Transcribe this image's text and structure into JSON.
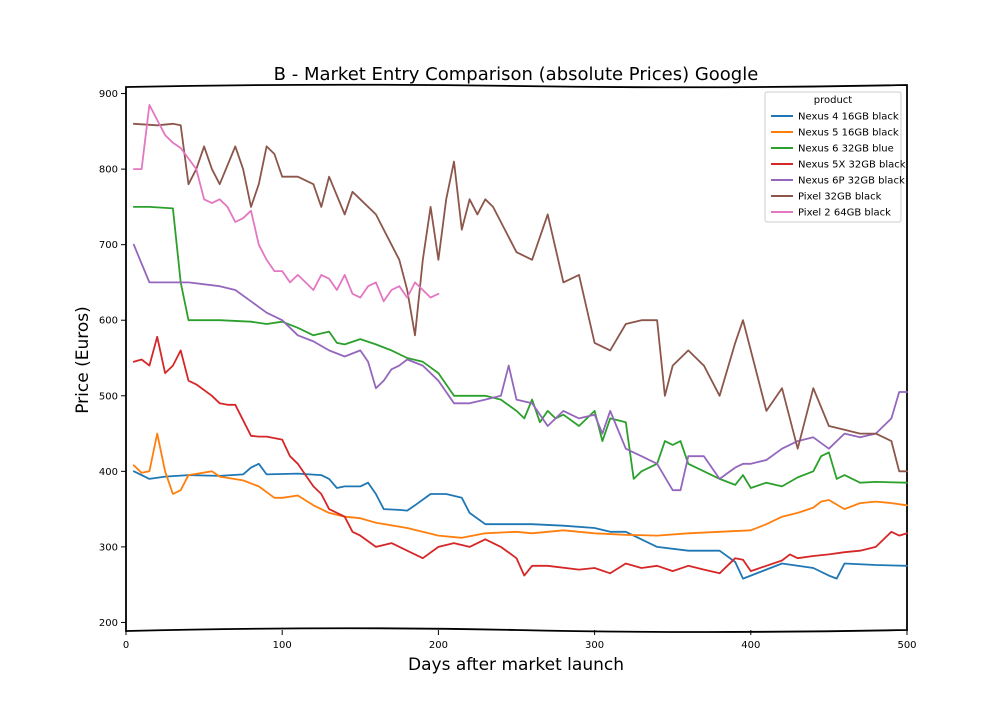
{
  "chart_data": {
    "type": "line",
    "title": "B - Market Entry Comparison (absolute Prices) Google",
    "xlabel": "Days after market launch",
    "ylabel": "Price (Euros)",
    "xlim": [
      0,
      500
    ],
    "ylim": [
      190,
      910
    ],
    "xticks": [
      0,
      100,
      200,
      300,
      400,
      500
    ],
    "yticks": [
      200,
      300,
      400,
      500,
      600,
      700,
      800,
      900
    ],
    "grid": false,
    "legend": {
      "title": "product",
      "position": "top-right"
    },
    "series": [
      {
        "name": "Nexus 4 16GB black",
        "color": "#1f77b4",
        "x": [
          5,
          10,
          15,
          25,
          40,
          60,
          75,
          80,
          85,
          90,
          110,
          125,
          130,
          135,
          140,
          150,
          155,
          160,
          165,
          175,
          180,
          185,
          195,
          205,
          215,
          220,
          230,
          240,
          250,
          260,
          280,
          300,
          310,
          320,
          340,
          360,
          380,
          390,
          395,
          400,
          420,
          440,
          450,
          455,
          460,
          480,
          500
        ],
        "y": [
          400,
          395,
          390,
          393,
          395,
          394,
          396,
          405,
          410,
          396,
          397,
          395,
          390,
          378,
          380,
          380,
          385,
          370,
          350,
          349,
          348,
          355,
          370,
          370,
          365,
          345,
          330,
          330,
          330,
          330,
          328,
          325,
          320,
          320,
          300,
          295,
          295,
          280,
          258,
          262,
          278,
          272,
          262,
          258,
          278,
          276,
          275
        ]
      },
      {
        "name": "Nexus 5 16GB black",
        "color": "#ff7f0e",
        "x": [
          5,
          10,
          15,
          20,
          25,
          30,
          35,
          40,
          55,
          60,
          75,
          85,
          95,
          100,
          110,
          120,
          130,
          140,
          150,
          160,
          180,
          200,
          215,
          230,
          250,
          260,
          270,
          280,
          300,
          320,
          340,
          360,
          380,
          400,
          410,
          420,
          430,
          440,
          445,
          450,
          460,
          470,
          480,
          490,
          500
        ],
        "y": [
          408,
          398,
          400,
          450,
          400,
          370,
          375,
          395,
          400,
          393,
          388,
          380,
          365,
          365,
          368,
          355,
          345,
          340,
          338,
          332,
          325,
          315,
          312,
          318,
          320,
          318,
          320,
          322,
          318,
          316,
          315,
          318,
          320,
          322,
          330,
          340,
          345,
          352,
          360,
          362,
          350,
          358,
          360,
          358,
          355
        ]
      },
      {
        "name": "Nexus 6 32GB blue",
        "color": "#2ca02c",
        "x": [
          5,
          15,
          30,
          35,
          40,
          60,
          80,
          90,
          100,
          110,
          120,
          130,
          135,
          140,
          150,
          160,
          170,
          180,
          190,
          200,
          210,
          220,
          230,
          240,
          250,
          255,
          260,
          265,
          270,
          275,
          280,
          290,
          300,
          305,
          310,
          320,
          325,
          330,
          340,
          345,
          350,
          355,
          360,
          370,
          380,
          390,
          395,
          400,
          410,
          420,
          430,
          440,
          445,
          450,
          455,
          460,
          470,
          480,
          500
        ],
        "y": [
          750,
          750,
          748,
          650,
          600,
          600,
          598,
          595,
          598,
          590,
          580,
          585,
          570,
          568,
          575,
          568,
          560,
          550,
          545,
          530,
          500,
          500,
          500,
          495,
          480,
          470,
          495,
          465,
          480,
          470,
          475,
          460,
          480,
          440,
          470,
          465,
          390,
          400,
          410,
          440,
          435,
          440,
          410,
          400,
          390,
          382,
          395,
          378,
          385,
          380,
          392,
          400,
          420,
          425,
          390,
          395,
          385,
          386,
          385
        ]
      },
      {
        "name": "Nexus 5X 32GB black",
        "color": "#d62728",
        "x": [
          5,
          10,
          15,
          20,
          25,
          30,
          35,
          40,
          45,
          55,
          60,
          65,
          70,
          80,
          85,
          90,
          100,
          105,
          110,
          115,
          120,
          125,
          130,
          140,
          145,
          150,
          160,
          170,
          180,
          190,
          200,
          210,
          220,
          230,
          240,
          250,
          255,
          260,
          270,
          290,
          300,
          310,
          320,
          330,
          340,
          350,
          360,
          370,
          380,
          390,
          395,
          400,
          410,
          420,
          425,
          430,
          440,
          450,
          460,
          470,
          480,
          490,
          495,
          500
        ],
        "y": [
          545,
          548,
          540,
          578,
          530,
          540,
          560,
          520,
          515,
          500,
          490,
          488,
          488,
          447,
          446,
          446,
          442,
          420,
          410,
          395,
          380,
          370,
          350,
          340,
          320,
          315,
          300,
          305,
          295,
          285,
          300,
          305,
          300,
          310,
          300,
          285,
          262,
          275,
          275,
          270,
          272,
          265,
          278,
          272,
          275,
          268,
          275,
          270,
          265,
          285,
          283,
          268,
          275,
          282,
          290,
          285,
          288,
          290,
          293,
          295,
          300,
          320,
          315,
          318
        ]
      },
      {
        "name": "Nexus 6P 32GB black",
        "color": "#9467bd",
        "x": [
          5,
          10,
          15,
          40,
          60,
          70,
          80,
          90,
          100,
          110,
          120,
          130,
          140,
          150,
          155,
          160,
          165,
          170,
          175,
          180,
          190,
          200,
          210,
          220,
          230,
          240,
          245,
          250,
          260,
          270,
          280,
          290,
          300,
          305,
          310,
          320,
          330,
          340,
          350,
          355,
          360,
          370,
          380,
          390,
          395,
          400,
          410,
          420,
          430,
          440,
          450,
          455,
          460,
          470,
          480,
          490,
          495,
          500
        ],
        "y": [
          700,
          675,
          650,
          650,
          645,
          640,
          625,
          610,
          600,
          580,
          572,
          560,
          552,
          560,
          545,
          510,
          520,
          535,
          540,
          548,
          540,
          520,
          490,
          490,
          495,
          500,
          540,
          495,
          490,
          460,
          480,
          470,
          475,
          450,
          480,
          430,
          420,
          410,
          375,
          375,
          420,
          420,
          390,
          405,
          410,
          410,
          415,
          430,
          440,
          445,
          430,
          440,
          450,
          445,
          450,
          470,
          505,
          505
        ]
      },
      {
        "name": "Pixel 32GB black",
        "color": "#8c564b",
        "x": [
          5,
          20,
          30,
          35,
          40,
          45,
          50,
          55,
          60,
          70,
          75,
          80,
          85,
          90,
          95,
          100,
          110,
          120,
          125,
          130,
          140,
          145,
          150,
          160,
          170,
          175,
          180,
          185,
          190,
          195,
          200,
          205,
          210,
          215,
          220,
          225,
          230,
          235,
          240,
          250,
          260,
          270,
          280,
          290,
          300,
          310,
          320,
          330,
          340,
          345,
          350,
          360,
          370,
          380,
          390,
          395,
          400,
          410,
          420,
          430,
          440,
          450,
          460,
          470,
          480,
          490,
          495,
          500
        ],
        "y": [
          860,
          858,
          860,
          858,
          780,
          800,
          830,
          800,
          780,
          830,
          800,
          750,
          780,
          830,
          820,
          790,
          790,
          780,
          750,
          790,
          740,
          770,
          760,
          740,
          700,
          680,
          640,
          580,
          680,
          750,
          680,
          760,
          810,
          720,
          760,
          740,
          760,
          750,
          730,
          690,
          680,
          740,
          650,
          660,
          570,
          560,
          595,
          600,
          600,
          500,
          540,
          560,
          540,
          500,
          570,
          600,
          560,
          480,
          510,
          430,
          510,
          460,
          455,
          450,
          450,
          440,
          400,
          400
        ]
      },
      {
        "name": "Pixel 2 64GB black",
        "color": "#e377c2",
        "x": [
          5,
          10,
          15,
          20,
          25,
          30,
          35,
          45,
          50,
          55,
          60,
          65,
          70,
          75,
          80,
          85,
          90,
          95,
          100,
          105,
          110,
          115,
          120,
          125,
          130,
          135,
          140,
          145,
          150,
          155,
          160,
          165,
          170,
          175,
          180,
          185,
          190,
          195,
          200
        ],
        "y": [
          800,
          800,
          885,
          865,
          845,
          835,
          828,
          800,
          760,
          755,
          760,
          750,
          730,
          735,
          745,
          700,
          680,
          665,
          665,
          650,
          660,
          650,
          640,
          660,
          655,
          640,
          660,
          635,
          630,
          645,
          650,
          625,
          640,
          645,
          630,
          650,
          640,
          630,
          635
        ]
      }
    ]
  }
}
